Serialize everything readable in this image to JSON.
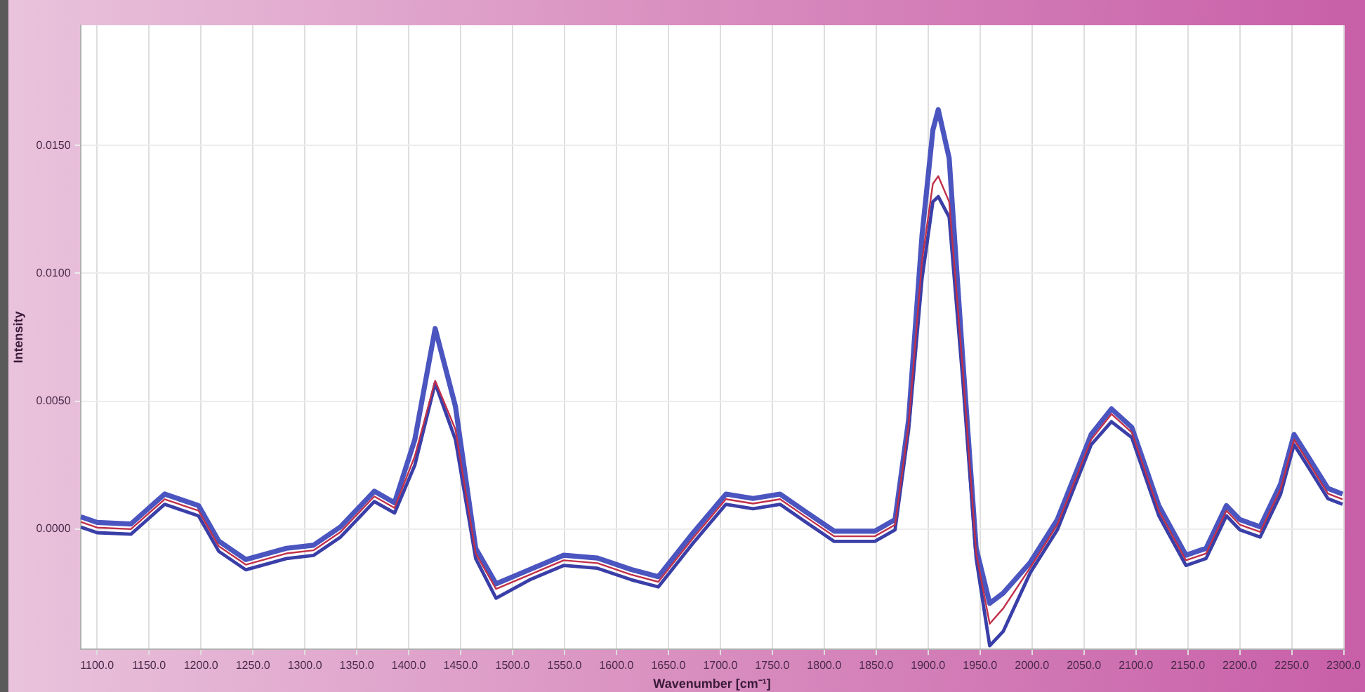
{
  "chart_data": {
    "type": "line",
    "xlabel": "Wavenumber [cm⁻¹]",
    "ylabel": "Intensity",
    "x": [
      1084.4,
      1100,
      1132.6,
      1165.1,
      1197.7,
      1217.2,
      1243.2,
      1282.3,
      1308.3,
      1334.4,
      1366.9,
      1386.4,
      1405.9,
      1425.5,
      1445.0,
      1464.5,
      1484.1,
      1516.6,
      1549.2,
      1581.7,
      1614.3,
      1640.3,
      1672.9,
      1705.4,
      1731.5,
      1757.5,
      1783.6,
      1809.6,
      1848.7,
      1868.2,
      1881.2,
      1894.2,
      1904.6,
      1909.8,
      1920.3,
      1933.3,
      1946.3,
      1959.3,
      1972.3,
      1998.4,
      2024.4,
      2057.0,
      2076.5,
      2096.1,
      2122.1,
      2148.2,
      2167.6,
      2187.2,
      2200.2,
      2219.7,
      2239.3,
      2252.3,
      2265.3,
      2284.9,
      2299
    ],
    "series": [
      {
        "color": "#4a55c0",
        "values": [
          0.00048,
          0.00026,
          0.0002,
          0.00137,
          0.00092,
          -0.00047,
          -0.00119,
          -0.00075,
          -0.00063,
          9e-05,
          0.00148,
          0.00103,
          0.0035,
          0.00784,
          0.0048,
          -0.00075,
          -0.00214,
          -0.00158,
          -0.00102,
          -0.00113,
          -0.00158,
          -0.00186,
          -0.00019,
          0.00137,
          0.0012,
          0.00137,
          0.00064,
          -8e-05,
          -8e-05,
          0.00037,
          0.00426,
          0.0115,
          0.0156,
          0.0164,
          0.0145,
          0.00668,
          -0.00075,
          -0.0029,
          -0.0025,
          -0.0013,
          0.00037,
          0.0037,
          0.0047,
          0.00398,
          0.00092,
          -0.00102,
          -0.00075,
          0.00092,
          0.00037,
          9e-05,
          0.00176,
          0.0037,
          0.00287,
          0.00159,
          0.00137
        ]
      },
      {
        "color": "#3a3fa8",
        "values": [
          8e-05,
          -0.00014,
          -0.0002,
          0.00097,
          0.00052,
          -0.00087,
          -0.00159,
          -0.00115,
          -0.00103,
          -0.00031,
          0.00108,
          0.00063,
          0.0025,
          0.0057,
          0.0035,
          -0.00115,
          -0.0027,
          -0.00198,
          -0.00142,
          -0.00153,
          -0.00198,
          -0.00226,
          -0.00059,
          0.00097,
          0.0008,
          0.00097,
          0.00024,
          -0.00048,
          -0.00048,
          -3e-05,
          0.00386,
          0.0098,
          0.0128,
          0.013,
          0.0122,
          0.00588,
          -0.00115,
          -0.00456,
          -0.004,
          -0.0017,
          -3e-05,
          0.0033,
          0.0042,
          0.00358,
          0.00052,
          -0.00142,
          -0.00115,
          0.00052,
          -3e-05,
          -0.00031,
          0.00136,
          0.0033,
          0.00247,
          0.00119,
          0.00097
        ]
      },
      {
        "color": "#c0304a",
        "values": [
          0.00028,
          6e-05,
          0.0,
          0.00117,
          0.00072,
          -0.00067,
          -0.00139,
          -0.00095,
          -0.00083,
          -0.00011,
          0.00128,
          0.00083,
          0.00285,
          0.0058,
          0.0039,
          -0.00095,
          -0.00234,
          -0.00178,
          -0.00122,
          -0.00133,
          -0.00178,
          -0.00206,
          -0.00039,
          0.00117,
          0.001,
          0.00117,
          0.00044,
          -0.00028,
          -0.00028,
          0.00017,
          0.00406,
          0.0105,
          0.0135,
          0.0138,
          0.0128,
          0.00628,
          -0.00095,
          -0.0037,
          -0.0031,
          -0.0015,
          0.00017,
          0.0035,
          0.0045,
          0.00378,
          0.00072,
          -0.00122,
          -0.00095,
          0.00072,
          0.00017,
          -0.00011,
          0.00156,
          0.0035,
          0.00267,
          0.00139,
          0.00117
        ]
      }
    ],
    "xlim": [
      1084,
      2300
    ],
    "xticks": [
      {
        "value": 1100,
        "label": "1100.0"
      },
      {
        "value": 1150,
        "label": "1150.0"
      },
      {
        "value": 1200,
        "label": "1200.0"
      },
      {
        "value": 1250,
        "label": "1250.0"
      },
      {
        "value": 1300,
        "label": "1300.0"
      },
      {
        "value": 1350,
        "label": "1350.0"
      },
      {
        "value": 1400,
        "label": "1400.0"
      },
      {
        "value": 1450,
        "label": "1450.0"
      },
      {
        "value": 1500,
        "label": "1500.0"
      },
      {
        "value": 1550,
        "label": "1550.0"
      },
      {
        "value": 1600,
        "label": "1600.0"
      },
      {
        "value": 1650,
        "label": "1650.0"
      },
      {
        "value": 1700,
        "label": "1700.0"
      },
      {
        "value": 1750,
        "label": "1750.0"
      },
      {
        "value": 1800,
        "label": "1800.0"
      },
      {
        "value": 1850,
        "label": "1850.0"
      },
      {
        "value": 1900,
        "label": "1900.0"
      },
      {
        "value": 1950,
        "label": "1950.0"
      },
      {
        "value": 2000,
        "label": "2000.0"
      },
      {
        "value": 2050,
        "label": "2050.0"
      },
      {
        "value": 2100,
        "label": "2100.0"
      },
      {
        "value": 2150,
        "label": "2150.0"
      },
      {
        "value": 2200,
        "label": "2200.0"
      },
      {
        "value": 2250,
        "label": "2250.0"
      },
      {
        "value": 2300,
        "label": "2300.0"
      }
    ],
    "ylim": [
      -0.0047,
      0.0197
    ],
    "yticks": [
      {
        "value": 0,
        "label": "0.0000"
      },
      {
        "value": 0.005,
        "label": "0.0050"
      },
      {
        "value": 0.01,
        "label": "0.0100"
      },
      {
        "value": 0.015,
        "label": "0.0150"
      }
    ],
    "grid": true,
    "legend": false,
    "marker": "none",
    "line_style": "solid"
  }
}
